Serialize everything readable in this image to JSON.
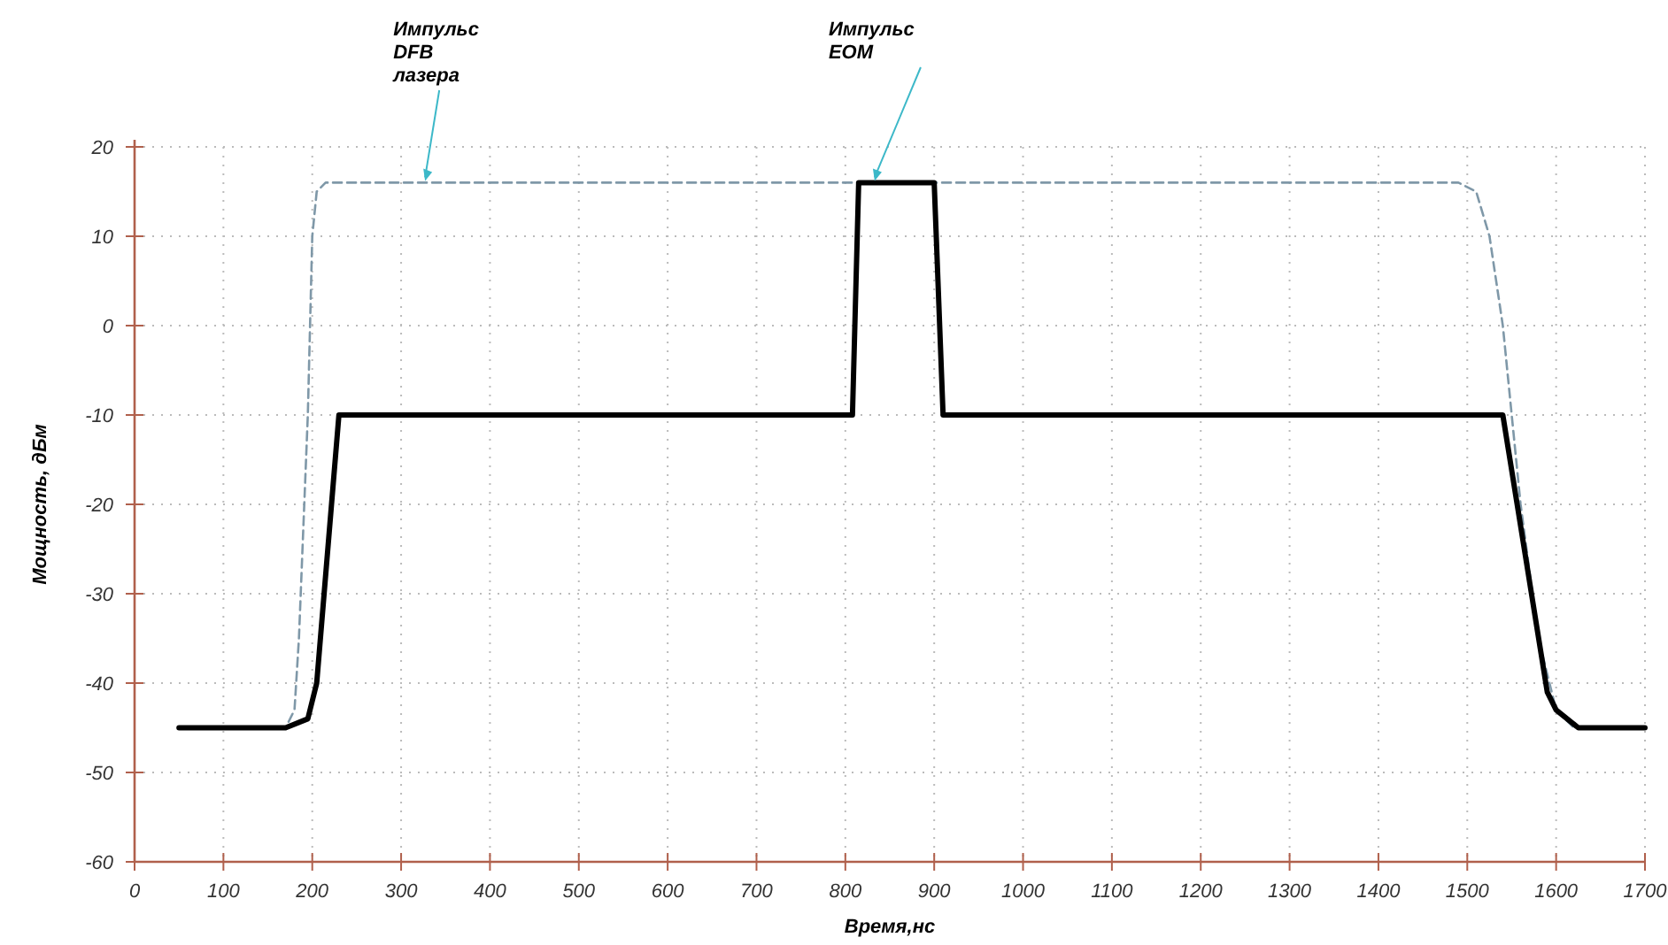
{
  "chart_data": {
    "type": "line",
    "xlabel": "Время,нс",
    "ylabel": "Мощность, дБм",
    "xlim": [
      0,
      1700
    ],
    "xticks": [
      0,
      100,
      200,
      300,
      400,
      500,
      600,
      700,
      800,
      900,
      1000,
      1100,
      1200,
      1300,
      1400,
      1500,
      1600,
      1700
    ],
    "ylim": [
      -60,
      20
    ],
    "yticks": [
      -60,
      -50,
      -40,
      -30,
      -20,
      -10,
      0,
      10,
      20
    ],
    "grid": true,
    "series": [
      {
        "color": "#7f98a8",
        "line_style": "dashed",
        "x": [
          50,
          170,
          180,
          185,
          195,
          200,
          205,
          215,
          1490,
          1510,
          1525,
          1540,
          1560,
          1580,
          1600,
          1620,
          1700
        ],
        "values": [
          -45,
          -45,
          -43,
          -35,
          -10,
          10,
          15,
          16,
          16,
          15,
          10,
          0,
          -20,
          -35,
          -43,
          -45,
          -45
        ]
      },
      {
        "color": "#000000",
        "line_style": "solid",
        "x": [
          50,
          170,
          195,
          205,
          230,
          808,
          815,
          900,
          910,
          1540,
          1590,
          1600,
          1625,
          1700
        ],
        "values": [
          -45,
          -45,
          -44,
          -40,
          -10,
          -10,
          16,
          16,
          -10,
          -10,
          -41,
          -43,
          -45,
          -45
        ]
      }
    ],
    "annotations": [
      {
        "text": "Импульс\nDFB\nлазера",
        "x": 327,
        "y": 16
      },
      {
        "text": "Импульс\nEOM",
        "x": 833,
        "y": 16
      }
    ]
  }
}
